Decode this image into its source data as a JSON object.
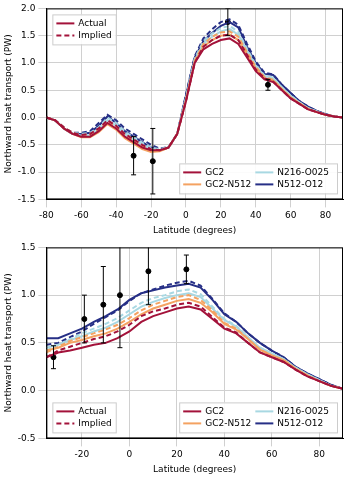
{
  "chart_data": [
    {
      "type": "line",
      "x_label": "Latitude (degrees)",
      "y_label": "Northward heat transport (PW)",
      "x": [
        -80,
        -75,
        -70,
        -65,
        -60,
        -55,
        -50,
        -45,
        -40,
        -35,
        -30,
        -25,
        -20,
        -15,
        -10,
        -5,
        0,
        5,
        10,
        15,
        20,
        25,
        30,
        35,
        40,
        45,
        50,
        55,
        60,
        65,
        70,
        75,
        80,
        85,
        90
      ],
      "series": [
        {
          "name": "GC2",
          "color": "#a3123a",
          "values": [
            0,
            -0.05,
            -0.2,
            -0.3,
            -0.35,
            -0.35,
            -0.25,
            -0.1,
            -0.2,
            -0.35,
            -0.45,
            -0.55,
            -0.6,
            -0.6,
            -0.55,
            -0.3,
            0.3,
            1.0,
            1.25,
            1.35,
            1.42,
            1.45,
            1.35,
            1.1,
            0.85,
            0.7,
            0.65,
            0.5,
            0.35,
            0.25,
            0.15,
            0.1,
            0.05,
            0.02,
            0
          ],
          "implied_values": [
            0,
            -0.05,
            -0.18,
            -0.28,
            -0.32,
            -0.3,
            -0.2,
            -0.05,
            -0.15,
            -0.3,
            -0.4,
            -0.5,
            -0.58,
            -0.6,
            -0.55,
            -0.3,
            0.3,
            1.0,
            1.3,
            1.42,
            1.5,
            1.52,
            1.42,
            1.15,
            0.88,
            0.72,
            0.66,
            0.5,
            0.35,
            0.25,
            0.15,
            0.1,
            0.05,
            0.02,
            0
          ]
        },
        {
          "name": "GC2-N512",
          "color": "#f4a261",
          "values": [
            0,
            -0.05,
            -0.2,
            -0.3,
            -0.36,
            -0.36,
            -0.27,
            -0.12,
            -0.22,
            -0.38,
            -0.48,
            -0.58,
            -0.63,
            -0.62,
            -0.55,
            -0.3,
            0.32,
            1.02,
            1.3,
            1.42,
            1.5,
            1.52,
            1.42,
            1.15,
            0.9,
            0.72,
            0.68,
            0.52,
            0.37,
            0.26,
            0.16,
            0.1,
            0.05,
            0.02,
            0
          ],
          "implied_values": [
            0,
            -0.05,
            -0.18,
            -0.28,
            -0.33,
            -0.31,
            -0.22,
            -0.07,
            -0.17,
            -0.33,
            -0.43,
            -0.53,
            -0.6,
            -0.61,
            -0.55,
            -0.3,
            0.32,
            1.04,
            1.35,
            1.48,
            1.56,
            1.58,
            1.48,
            1.2,
            0.93,
            0.74,
            0.69,
            0.52,
            0.37,
            0.26,
            0.16,
            0.1,
            0.05,
            0.02,
            0
          ]
        },
        {
          "name": "N216-O025",
          "color": "#a8d8e2",
          "values": [
            0,
            -0.05,
            -0.2,
            -0.3,
            -0.33,
            -0.32,
            -0.22,
            -0.05,
            -0.15,
            -0.3,
            -0.4,
            -0.5,
            -0.57,
            -0.6,
            -0.55,
            -0.3,
            0.35,
            1.05,
            1.35,
            1.48,
            1.58,
            1.62,
            1.52,
            1.22,
            0.95,
            0.76,
            0.72,
            0.55,
            0.4,
            0.28,
            0.17,
            0.11,
            0.05,
            0.02,
            0
          ],
          "implied_values": [
            0,
            -0.05,
            -0.18,
            -0.28,
            -0.3,
            -0.28,
            -0.18,
            0,
            -0.1,
            -0.26,
            -0.36,
            -0.46,
            -0.55,
            -0.58,
            -0.54,
            -0.3,
            0.36,
            1.08,
            1.4,
            1.54,
            1.64,
            1.68,
            1.57,
            1.26,
            0.97,
            0.77,
            0.73,
            0.55,
            0.4,
            0.28,
            0.17,
            0.11,
            0.05,
            0.02,
            0
          ]
        },
        {
          "name": "N512-O12",
          "color": "#262f86",
          "values": [
            0,
            -0.05,
            -0.2,
            -0.3,
            -0.3,
            -0.28,
            -0.15,
            0.02,
            -0.1,
            -0.25,
            -0.35,
            -0.45,
            -0.55,
            -0.6,
            -0.55,
            -0.3,
            0.4,
            1.1,
            1.4,
            1.55,
            1.68,
            1.75,
            1.65,
            1.3,
            1.0,
            0.8,
            0.78,
            0.6,
            0.45,
            0.3,
            0.2,
            0.12,
            0.06,
            0.02,
            0
          ],
          "implied_values": [
            0,
            -0.05,
            -0.18,
            -0.28,
            -0.28,
            -0.25,
            -0.1,
            0.05,
            -0.05,
            -0.2,
            -0.3,
            -0.4,
            -0.5,
            -0.57,
            -0.54,
            -0.3,
            0.42,
            1.12,
            1.45,
            1.62,
            1.75,
            1.8,
            1.7,
            1.35,
            1.03,
            0.82,
            0.79,
            0.6,
            0.45,
            0.3,
            0.2,
            0.12,
            0.06,
            0.02,
            0
          ]
        }
      ],
      "style_legend": [
        {
          "label": "Actual",
          "line_style": "solid"
        },
        {
          "label": "Implied",
          "line_style": "dashed"
        }
      ],
      "observations": {
        "x": [
          -30,
          -19,
          24,
          47
        ],
        "y": [
          -0.7,
          -0.8,
          1.75,
          0.6
        ],
        "error": [
          0.35,
          0.6,
          0.25,
          0.1
        ]
      },
      "xlim": [
        -80,
        90
      ],
      "xticks": [
        -80,
        -60,
        -40,
        -20,
        0,
        20,
        40,
        60,
        80
      ],
      "ylim": [
        -1.5,
        2.0
      ],
      "yticks": [
        {
          "value": -1.5,
          "label": "-1.5"
        },
        {
          "value": -1.0,
          "label": "-1.0"
        },
        {
          "value": -0.5,
          "label": "-0.5"
        },
        {
          "value": 0,
          "label": "0.0"
        },
        {
          "value": 0.5,
          "label": "0.5"
        },
        {
          "value": 1.0,
          "label": "1.0"
        },
        {
          "value": 1.5,
          "label": "1.5"
        },
        {
          "value": 2.0,
          "label": "2.0"
        }
      ],
      "grid": true,
      "legend": "lower right"
    },
    {
      "type": "line",
      "x_label": "Latitude (degrees)",
      "y_label": "Northward heat transport (PW)",
      "x": [
        -35,
        -30,
        -25,
        -20,
        -15,
        -10,
        -5,
        0,
        5,
        10,
        15,
        20,
        25,
        30,
        35,
        40,
        45,
        50,
        55,
        60,
        65,
        70,
        75,
        80,
        85,
        90
      ],
      "series": [
        {
          "name": "GC2",
          "color": "#a3123a",
          "values": [
            0.35,
            0.4,
            0.42,
            0.45,
            0.48,
            0.5,
            0.55,
            0.62,
            0.72,
            0.78,
            0.82,
            0.86,
            0.88,
            0.85,
            0.75,
            0.65,
            0.6,
            0.5,
            0.4,
            0.35,
            0.3,
            0.22,
            0.15,
            0.1,
            0.05,
            0.02
          ],
          "implied_values": [
            0.35,
            0.42,
            0.46,
            0.5,
            0.54,
            0.57,
            0.62,
            0.69,
            0.78,
            0.83,
            0.86,
            0.9,
            0.92,
            0.88,
            0.77,
            0.66,
            0.61,
            0.5,
            0.4,
            0.35,
            0.3,
            0.22,
            0.15,
            0.1,
            0.05,
            0.02
          ]
        },
        {
          "name": "GC2-N512",
          "color": "#f4a261",
          "values": [
            0.42,
            0.45,
            0.5,
            0.53,
            0.57,
            0.6,
            0.65,
            0.72,
            0.8,
            0.86,
            0.9,
            0.94,
            0.96,
            0.92,
            0.82,
            0.7,
            0.64,
            0.54,
            0.43,
            0.37,
            0.32,
            0.23,
            0.16,
            0.1,
            0.05,
            0.02
          ],
          "implied_values": [
            0.4,
            0.46,
            0.52,
            0.56,
            0.6,
            0.64,
            0.69,
            0.76,
            0.84,
            0.9,
            0.94,
            0.98,
            1.0,
            0.95,
            0.84,
            0.71,
            0.65,
            0.54,
            0.43,
            0.37,
            0.32,
            0.23,
            0.16,
            0.1,
            0.05,
            0.02
          ]
        },
        {
          "name": "N216-O025",
          "color": "#a8d8e2",
          "values": [
            0.45,
            0.48,
            0.53,
            0.57,
            0.62,
            0.66,
            0.72,
            0.8,
            0.88,
            0.93,
            0.97,
            1.0,
            1.02,
            0.98,
            0.86,
            0.74,
            0.67,
            0.56,
            0.45,
            0.39,
            0.33,
            0.24,
            0.17,
            0.11,
            0.05,
            0.02
          ],
          "implied_values": [
            0.42,
            0.48,
            0.54,
            0.6,
            0.65,
            0.7,
            0.76,
            0.84,
            0.92,
            0.97,
            1.0,
            1.04,
            1.06,
            1.01,
            0.88,
            0.75,
            0.68,
            0.56,
            0.45,
            0.39,
            0.33,
            0.24,
            0.17,
            0.11,
            0.05,
            0.02
          ]
        },
        {
          "name": "N512-O12",
          "color": "#262f86",
          "values": [
            0.55,
            0.55,
            0.6,
            0.65,
            0.72,
            0.78,
            0.85,
            0.95,
            1.02,
            1.05,
            1.08,
            1.1,
            1.12,
            1.08,
            0.95,
            0.8,
            0.72,
            0.6,
            0.5,
            0.42,
            0.35,
            0.25,
            0.18,
            0.12,
            0.06,
            0.02
          ],
          "implied_values": [
            0.48,
            0.5,
            0.56,
            0.62,
            0.7,
            0.77,
            0.84,
            0.94,
            1.02,
            1.06,
            1.1,
            1.13,
            1.15,
            1.1,
            0.96,
            0.81,
            0.72,
            0.6,
            0.5,
            0.42,
            0.35,
            0.25,
            0.18,
            0.12,
            0.06,
            0.02
          ]
        }
      ],
      "style_legend": [
        {
          "label": "Actual",
          "line_style": "solid"
        },
        {
          "label": "Implied",
          "line_style": "dashed"
        }
      ],
      "observations": {
        "x": [
          -32,
          -19,
          -11,
          -4,
          8,
          24
        ],
        "y": [
          0.35,
          0.75,
          0.9,
          1.0,
          1.25,
          1.27
        ],
        "error": [
          0.12,
          0.25,
          0.4,
          0.55,
          0.35,
          0.15
        ]
      },
      "xlim": [
        -35,
        90
      ],
      "xticks": [
        -20,
        0,
        20,
        40,
        60,
        80
      ],
      "ylim": [
        -0.5,
        1.5
      ],
      "yticks": [
        {
          "value": -0.5,
          "label": "-0.5"
        },
        {
          "value": 0,
          "label": "0.0"
        },
        {
          "value": 0.5,
          "label": "0.5"
        },
        {
          "value": 1.0,
          "label": "1.0"
        },
        {
          "value": 1.5,
          "label": "1.5"
        }
      ],
      "grid": true,
      "legend": "lower right"
    }
  ]
}
